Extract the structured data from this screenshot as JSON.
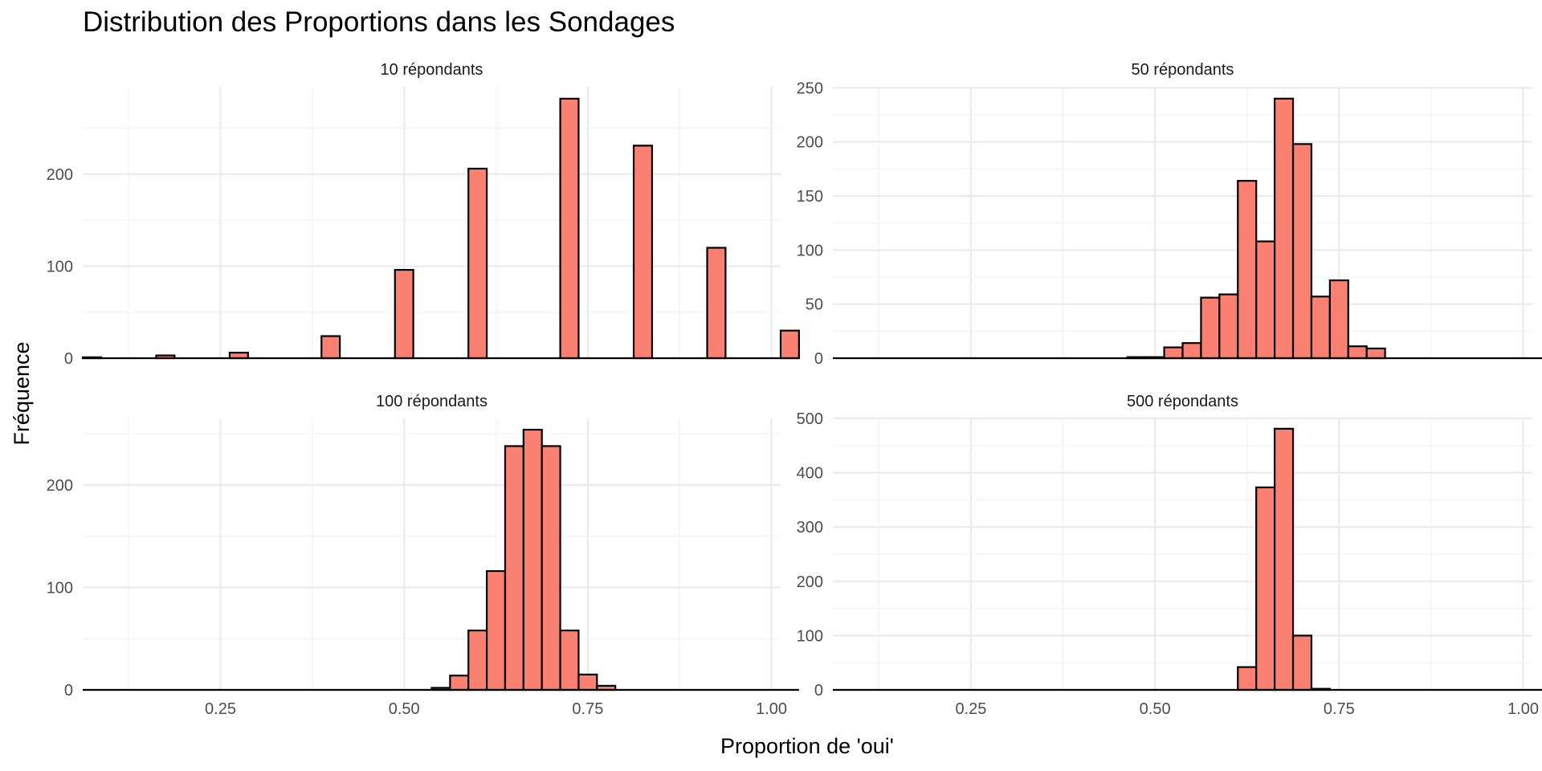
{
  "chart_data": {
    "type": "bar",
    "title": "Distribution des Proportions dans les Sondages",
    "xlabel": "Proportion de 'oui'",
    "ylabel": "Fréquence",
    "grid": true,
    "bar_color": "#FA8072",
    "bar_border": "#000000",
    "bin_width": 0.025,
    "xlim": [
      0.0625,
      1.0125
    ],
    "x_ticks": [
      "0.25",
      "0.50",
      "0.75",
      "1.00"
    ],
    "panels": [
      {
        "label": "10 répondants",
        "ylim": [
          0,
          295
        ],
        "y_ticks": [
          0,
          100,
          200
        ],
        "x_start": 0.075,
        "counts": [
          1,
          0,
          0,
          0,
          3,
          0,
          0,
          0,
          6,
          0,
          0,
          0,
          0,
          24,
          0,
          0,
          0,
          96,
          0,
          0,
          0,
          206,
          0,
          0,
          0,
          0,
          282,
          0,
          0,
          0,
          231,
          0,
          0,
          0,
          120,
          0,
          0,
          0,
          30
        ]
      },
      {
        "label": "50 répondants",
        "ylim": [
          0,
          251
        ],
        "y_ticks": [
          0,
          50,
          100,
          150,
          200,
          250
        ],
        "x_start": 0.075,
        "counts": [
          0,
          0,
          0,
          0,
          0,
          0,
          0,
          0,
          0,
          0,
          0,
          0,
          0,
          0,
          0,
          0,
          1,
          1,
          10,
          14,
          56,
          59,
          164,
          108,
          240,
          198,
          57,
          72,
          11,
          9,
          0,
          0,
          0,
          0,
          0,
          0,
          0,
          0,
          0
        ]
      },
      {
        "label": "100 répondants",
        "ylim": [
          0,
          265
        ],
        "y_ticks": [
          0,
          100,
          200
        ],
        "x_start": 0.075,
        "counts": [
          0,
          0,
          0,
          0,
          0,
          0,
          0,
          0,
          0,
          0,
          0,
          0,
          0,
          0,
          0,
          0,
          0,
          0,
          0,
          2,
          14,
          58,
          116,
          238,
          254,
          238,
          58,
          15,
          4,
          0,
          0,
          0,
          0,
          0,
          0,
          0,
          0,
          0,
          0
        ]
      },
      {
        "label": "500 répondants",
        "ylim": [
          0,
          500
        ],
        "y_ticks": [
          0,
          100,
          200,
          300,
          400,
          500
        ],
        "x_start": 0.075,
        "counts": [
          0,
          0,
          0,
          0,
          0,
          0,
          0,
          0,
          0,
          0,
          0,
          0,
          0,
          0,
          0,
          0,
          0,
          0,
          0,
          0,
          0,
          0,
          42,
          373,
          481,
          100,
          2,
          0,
          0,
          0,
          0,
          0,
          0,
          0,
          0,
          0,
          0,
          0,
          0
        ]
      }
    ]
  }
}
